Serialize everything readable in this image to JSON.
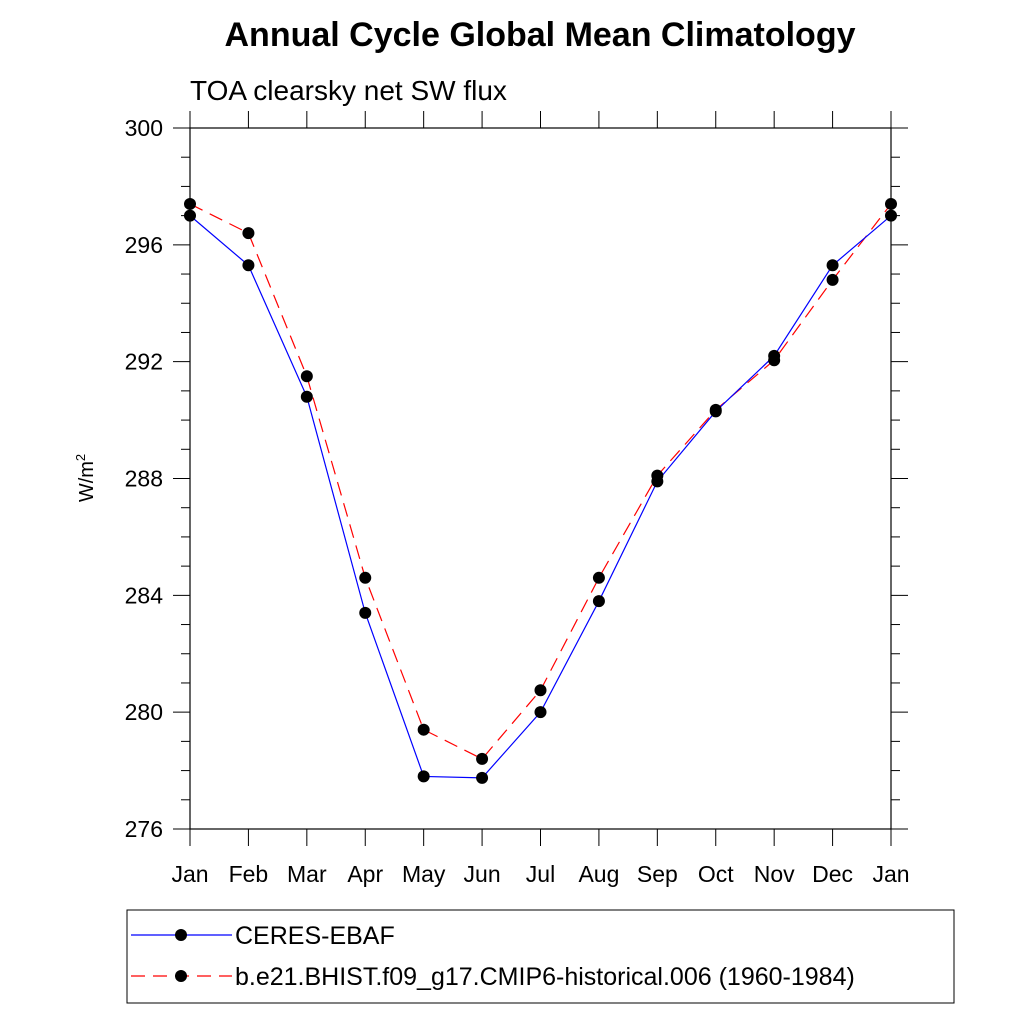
{
  "chart_data": {
    "type": "line",
    "title": "Annual Cycle Global Mean Climatology",
    "subtitle": "TOA clearsky net SW flux",
    "ylabel": "W/m",
    "ylabel_superscript": "2",
    "ylim": [
      276,
      300
    ],
    "yticks": [
      276,
      280,
      284,
      288,
      292,
      296,
      300
    ],
    "yticks_minor_step": 1,
    "categories": [
      "Jan",
      "Feb",
      "Mar",
      "Apr",
      "May",
      "Jun",
      "Jul",
      "Aug",
      "Sep",
      "Oct",
      "Nov",
      "Dec",
      "Jan"
    ],
    "grid": false,
    "legend_position": "bottom",
    "series": [
      {
        "name": "CERES-EBAF",
        "color": "#0000ff",
        "line_style": "solid",
        "marker": "filled-circle",
        "values": [
          297.0,
          295.3,
          290.8,
          283.4,
          277.8,
          277.75,
          280.0,
          283.8,
          287.9,
          290.3,
          292.2,
          295.3,
          297.0
        ]
      },
      {
        "name": "b.e21.BHIST.f09_g17.CMIP6-historical.006 (1960-1984)",
        "color": "#ff0000",
        "line_style": "dashed",
        "marker": "filled-circle",
        "values": [
          297.4,
          296.4,
          291.5,
          284.6,
          279.4,
          278.4,
          280.75,
          284.6,
          288.1,
          290.35,
          292.05,
          294.8,
          297.4
        ]
      }
    ]
  }
}
